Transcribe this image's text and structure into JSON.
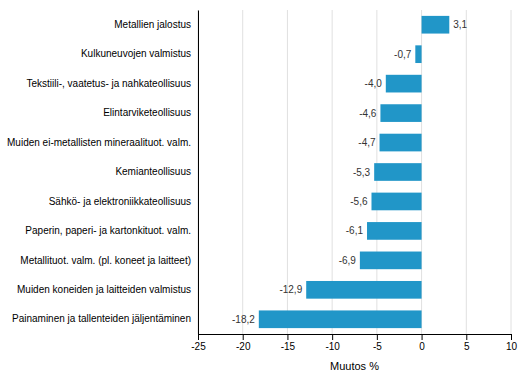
{
  "chart_data": {
    "type": "bar",
    "orientation": "horizontal",
    "categories": [
      "Painaminen ja tallenteiden jäljentäminen",
      "Muiden koneiden ja laitteiden valmistus",
      "Metallituot. valm. (pl. koneet ja laitteet)",
      "Paperin, paperi- ja kartonkituot. valm.",
      "Sähkö- ja elektroniikkateollisuus",
      "Kemianteollisuus",
      "Muiden ei-metallisten mineraalituot. valm.",
      "Elintarviketeollisuus",
      "Tekstiili-, vaatetus- ja nahkateollisuus",
      "Kulkuneuvojen valmistus",
      "Metallien jalostus"
    ],
    "values": [
      -18.2,
      -12.9,
      -6.9,
      -6.1,
      -5.6,
      -5.3,
      -4.7,
      -4.6,
      -4.0,
      -0.7,
      3.1
    ],
    "value_labels": [
      "-18,2",
      "-12,9",
      "-6,9",
      "-6,1",
      "-5,6",
      "-5,3",
      "-4,7",
      "-4,6",
      "-4,0",
      "-0,7",
      "3,1"
    ],
    "color": "#2196c8",
    "xlabel": "Muutos %",
    "xlim": [
      -25,
      10
    ],
    "xticks": [
      -25,
      -20,
      -15,
      -10,
      -5,
      0,
      5,
      10
    ],
    "grid": true,
    "data_labels": true
  }
}
